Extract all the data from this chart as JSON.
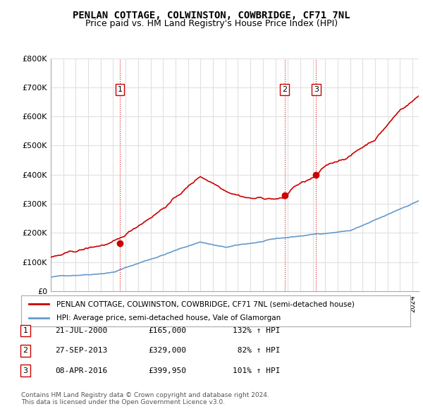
{
  "title_line1": "PENLAN COTTAGE, COLWINSTON, COWBRIDGE, CF71 7NL",
  "title_line2": "Price paid vs. HM Land Registry's House Price Index (HPI)",
  "ylabel": "",
  "xlabel": "",
  "ylim": [
    0,
    800000
  ],
  "yticks": [
    0,
    100000,
    200000,
    300000,
    400000,
    500000,
    600000,
    700000,
    800000
  ],
  "ytick_labels": [
    "£0",
    "£100K",
    "£200K",
    "£300K",
    "£400K",
    "£500K",
    "£600K",
    "£700K",
    "£800K"
  ],
  "sale_dates": [
    2000.55,
    2013.74,
    2016.27
  ],
  "sale_prices": [
    165000,
    329000,
    399950
  ],
  "sale_labels": [
    "1",
    "2",
    "3"
  ],
  "red_line_color": "#cc0000",
  "blue_line_color": "#6699cc",
  "sale_marker_color": "#cc0000",
  "vline_color": "#cc0000",
  "grid_color": "#e0e0e0",
  "background_color": "#ffffff",
  "legend_entries": [
    "PENLAN COTTAGE, COLWINSTON, COWBRIDGE, CF71 7NL (semi-detached house)",
    "HPI: Average price, semi-detached house, Vale of Glamorgan"
  ],
  "table_rows": [
    [
      "1",
      "21-JUL-2000",
      "£165,000",
      "132% ↑ HPI"
    ],
    [
      "2",
      "27-SEP-2013",
      "£329,000",
      " 82% ↑ HPI"
    ],
    [
      "3",
      "08-APR-2016",
      "£399,950",
      "101% ↑ HPI"
    ]
  ],
  "footnote": "Contains HM Land Registry data © Crown copyright and database right 2024.\nThis data is licensed under the Open Government Licence v3.0.",
  "xmin": 1995.0,
  "xmax": 2024.5
}
